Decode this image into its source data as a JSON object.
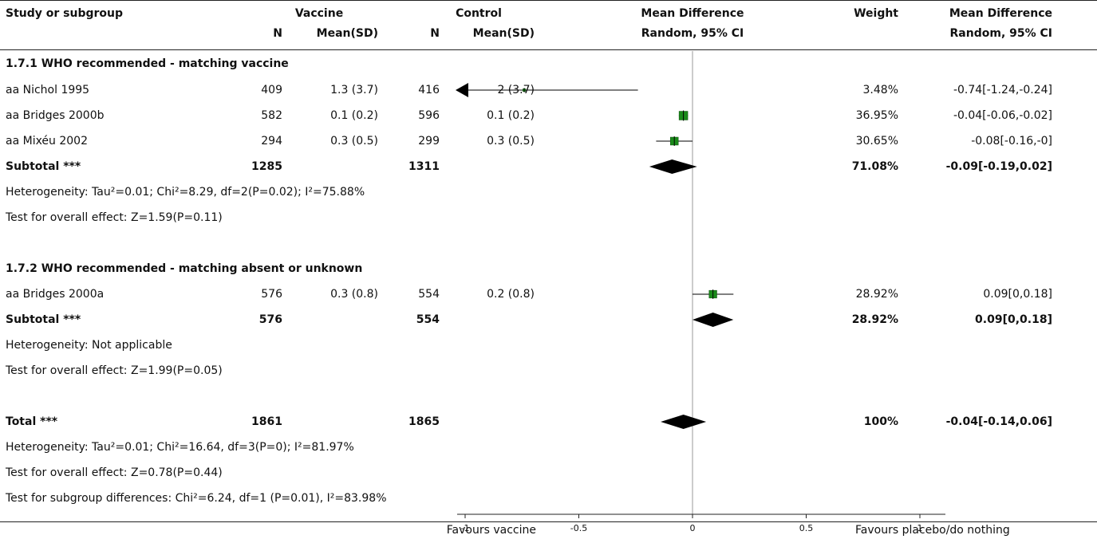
{
  "headers": {
    "study": "Study or subgroup",
    "vaccine": "Vaccine",
    "control": "Control",
    "md": "Mean Difference",
    "weight": "Weight",
    "md2": "Mean Difference",
    "n": "N",
    "mean_sd": "Mean(SD)",
    "random": "Random, 95% CI",
    "random2": "Random, 95% CI"
  },
  "groups": [
    {
      "title": "1.7.1 WHO recommended - matching vaccine",
      "studies": [
        {
          "name": "aa Nichol 1995",
          "vn": "409",
          "vm": "1.3 (3.7)",
          "cn": "416",
          "cm": "2 (3.7)",
          "weight": "3.48%",
          "ci": "-0.74[-1.24,-0.24]"
        },
        {
          "name": "aa Bridges 2000b",
          "vn": "582",
          "vm": "0.1 (0.2)",
          "cn": "596",
          "cm": "0.1 (0.2)",
          "weight": "36.95%",
          "ci": "-0.04[-0.06,-0.02]"
        },
        {
          "name": "aa Mixéu 2002",
          "vn": "294",
          "vm": "0.3 (0.5)",
          "cn": "299",
          "cm": "0.3 (0.5)",
          "weight": "30.65%",
          "ci": "-0.08[-0.16,-0]"
        }
      ],
      "subtotal": {
        "label": "Subtotal ***",
        "vn": "1285",
        "cn": "1311",
        "weight": "71.08%",
        "ci": "-0.09[-0.19,0.02]"
      },
      "heterogeneity": "Heterogeneity: Tau²=0.01; Chi²=8.29, df=2(P=0.02); I²=75.88%",
      "overall": "Test for overall effect: Z=1.59(P=0.11)"
    },
    {
      "title": "1.7.2 WHO recommended - matching absent or unknown",
      "studies": [
        {
          "name": "aa Bridges 2000a",
          "vn": "576",
          "vm": "0.3 (0.8)",
          "cn": "554",
          "cm": "0.2 (0.8)",
          "weight": "28.92%",
          "ci": "0.09[0,0.18]"
        }
      ],
      "subtotal": {
        "label": "Subtotal ***",
        "vn": "576",
        "cn": "554",
        "weight": "28.92%",
        "ci": "0.09[0,0.18]"
      },
      "heterogeneity": "Heterogeneity: Not applicable",
      "overall": "Test for overall effect: Z=1.99(P=0.05)"
    }
  ],
  "total": {
    "label": "Total ***",
    "vn": "1861",
    "cn": "1865",
    "weight": "100%",
    "ci": "-0.04[-0.14,0.06]",
    "heterogeneity": "Heterogeneity: Tau²=0.01; Chi²=16.64, df=3(P=0); I²=81.97%",
    "overall": "Test for overall effect: Z=0.78(P=0.44)",
    "subgroup": "Test for subgroup differences: Chi²=6.24, df=1 (P=0.01), I²=83.98%"
  },
  "footer": {
    "left": "Favours vaccine",
    "right": "Favours placebo/do nothing"
  },
  "colors": {
    "square": "#1a8a1a",
    "diamond": "#000000",
    "axis": "#222222",
    "zero_line": "#999999"
  },
  "chart_data": {
    "type": "forest",
    "xlim": [
      -1,
      1
    ],
    "xticks": [
      -1,
      -0.5,
      0,
      0.5,
      1
    ],
    "xtick_labels": [
      "-1",
      "-0.5",
      "0",
      "0.5",
      "1"
    ],
    "studies": [
      {
        "name": "aa Nichol 1995",
        "est": -0.74,
        "lo": -1.24,
        "hi": -0.24,
        "weight": 3.48,
        "clipped_left": true
      },
      {
        "name": "aa Bridges 2000b",
        "est": -0.04,
        "lo": -0.06,
        "hi": -0.02,
        "weight": 36.95
      },
      {
        "name": "aa Mixéu 2002",
        "est": -0.08,
        "lo": -0.16,
        "hi": 0,
        "weight": 30.65
      },
      {
        "name": "aa Bridges 2000a",
        "est": 0.09,
        "lo": 0,
        "hi": 0.18,
        "weight": 28.92
      }
    ],
    "diamonds": [
      {
        "name": "Subtotal 1.7.1",
        "est": -0.09,
        "lo": -0.19,
        "hi": 0.02
      },
      {
        "name": "Subtotal 1.7.2",
        "est": 0.09,
        "lo": 0,
        "hi": 0.18
      },
      {
        "name": "Total",
        "est": -0.04,
        "lo": -0.14,
        "hi": 0.06
      }
    ]
  }
}
